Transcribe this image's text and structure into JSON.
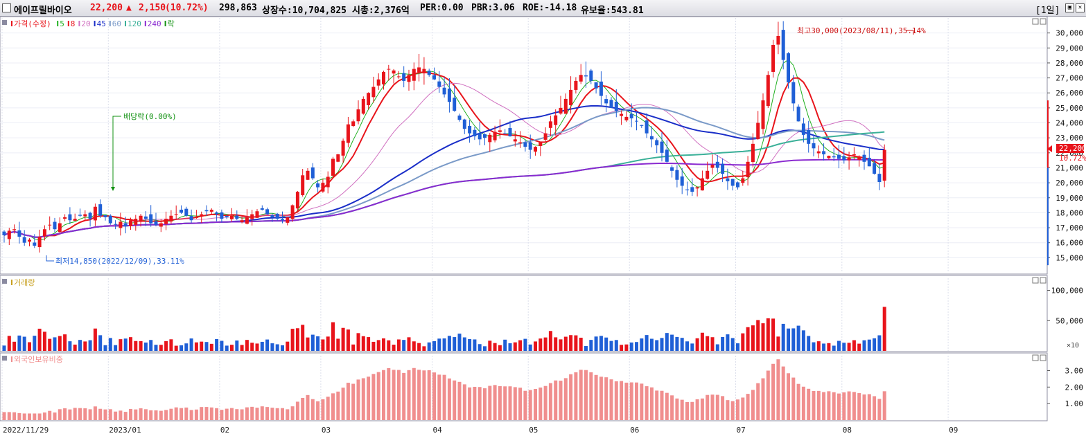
{
  "header": {
    "stock_name": "에이프릴바이오",
    "price": "22,200",
    "change_arrow": "▲",
    "change": "2,150",
    "change_pct": "(10.72%)",
    "volume": "298,863",
    "shares": "상장수:10,704,825",
    "market_cap": "시총:2,376억",
    "per": "PER:0.00",
    "pbr": "PBR:3.06",
    "roe": "ROE:-14.18",
    "reserve": "유보율:543.81",
    "period": "[1일]",
    "restore_glyph": "▣",
    "close_glyph": "✕"
  },
  "colors": {
    "up": "#e8141b",
    "down": "#1f5fd6",
    "foreign": "#f08e8e",
    "background": "#ffffff"
  },
  "chart_data": [
    {
      "type": "candlestick",
      "title": "가격(수정)",
      "legend": [
        {
          "label": "가격(수정)",
          "color": "#e8141b"
        },
        {
          "label": "5",
          "color": "#20b020"
        },
        {
          "label": "8",
          "color": "#e8141b"
        },
        {
          "label": "20",
          "color": "#d070c0"
        },
        {
          "label": "45",
          "color": "#1a2ec8"
        },
        {
          "label": "60",
          "color": "#7a9ac8"
        },
        {
          "label": "120",
          "color": "#3ab098"
        },
        {
          "label": "240",
          "color": "#8a2ad0"
        },
        {
          "label": "락",
          "color": "#109010"
        }
      ],
      "ylim": [
        14000,
        31000
      ],
      "yticks": [
        15000,
        16000,
        17000,
        18000,
        19000,
        20000,
        21000,
        22000,
        23000,
        24000,
        25000,
        26000,
        27000,
        28000,
        29000,
        30000
      ],
      "ytick_labels": [
        "15,000",
        "16,000",
        "17,000",
        "18,000",
        "19,000",
        "20,000",
        "21,000",
        "22,000",
        "23,000",
        "24,000",
        "25,000",
        "26,000",
        "27,000",
        "28,000",
        "29,000",
        "30,000"
      ],
      "current_price_label": "22,200",
      "current_change_label": "10.72%",
      "annotations": {
        "high": "최고30,000(2023/08/11),35.14%",
        "low": "최저14,850(2022/12/09),33.11%",
        "dividend": "배당락(0.00%)"
      },
      "month_labels": [
        "2022/11/29",
        "2023/01",
        "02",
        "03",
        "04",
        "05",
        "06",
        "07",
        "08",
        "09"
      ],
      "month_start_index": [
        0,
        21,
        43,
        63,
        85,
        104,
        124,
        145,
        166,
        187
      ],
      "closes": [
        16500,
        16800,
        16900,
        16400,
        16000,
        16200,
        15800,
        16400,
        16900,
        17200,
        16900,
        17300,
        17700,
        17500,
        17600,
        17800,
        17900,
        17600,
        18400,
        17800,
        17700,
        17300,
        17200,
        17400,
        17100,
        17500,
        17600,
        17800,
        17600,
        17300,
        17200,
        17300,
        17600,
        17800,
        17900,
        18000,
        17800,
        17500,
        17700,
        17900,
        18100,
        18200,
        17900,
        17600,
        17700,
        17800,
        17600,
        17500,
        17700,
        17900,
        18100,
        18200,
        17900,
        17700,
        17600,
        17500,
        17700,
        18500,
        19400,
        20500,
        20800,
        20300,
        19700,
        20000,
        20400,
        21600,
        21900,
        22800,
        23900,
        24100,
        24900,
        25600,
        26000,
        26400,
        26900,
        27400,
        27600,
        27500,
        27100,
        26800,
        27200,
        27600,
        27700,
        27600,
        27200,
        26900,
        26400,
        25900,
        25400,
        24800,
        24200,
        23600,
        23300,
        23100,
        22900,
        23000,
        23200,
        23400,
        23500,
        23300,
        23100,
        22900,
        22700,
        22400,
        22200,
        22400,
        22700,
        23300,
        24100,
        24500,
        25000,
        25600,
        26200,
        26800,
        27200,
        27100,
        26800,
        26300,
        25800,
        25300,
        25000,
        24800,
        24600,
        24400,
        24300,
        24100,
        23800,
        23300,
        22900,
        22500,
        22000,
        21400,
        20800,
        20200,
        19800,
        19500,
        19400,
        19700,
        20300,
        20800,
        21200,
        21000,
        20600,
        20100,
        19800,
        19700,
        20300,
        21400,
        22600,
        24000,
        25500,
        27200,
        29200,
        29800,
        28200,
        26700,
        25300,
        24100,
        23200,
        22600,
        22300,
        22100,
        21900,
        21800,
        21700,
        21600,
        21500,
        21700,
        21900,
        21700,
        21400,
        21100,
        20600,
        20050,
        22200
      ]
    },
    {
      "type": "bar",
      "title": "거래량",
      "ylim": [
        0,
        120000
      ],
      "yticks": [
        50000,
        100000
      ],
      "ytick_labels": [
        "50,000",
        "100,000"
      ],
      "unit_label": "×10"
    },
    {
      "type": "bar",
      "title": "외국인보유비중",
      "ylim": [
        0,
        3.9
      ],
      "yticks": [
        1.0,
        2.0,
        3.0
      ],
      "ytick_labels": [
        "1.00",
        "2.00",
        "3.00"
      ]
    }
  ]
}
